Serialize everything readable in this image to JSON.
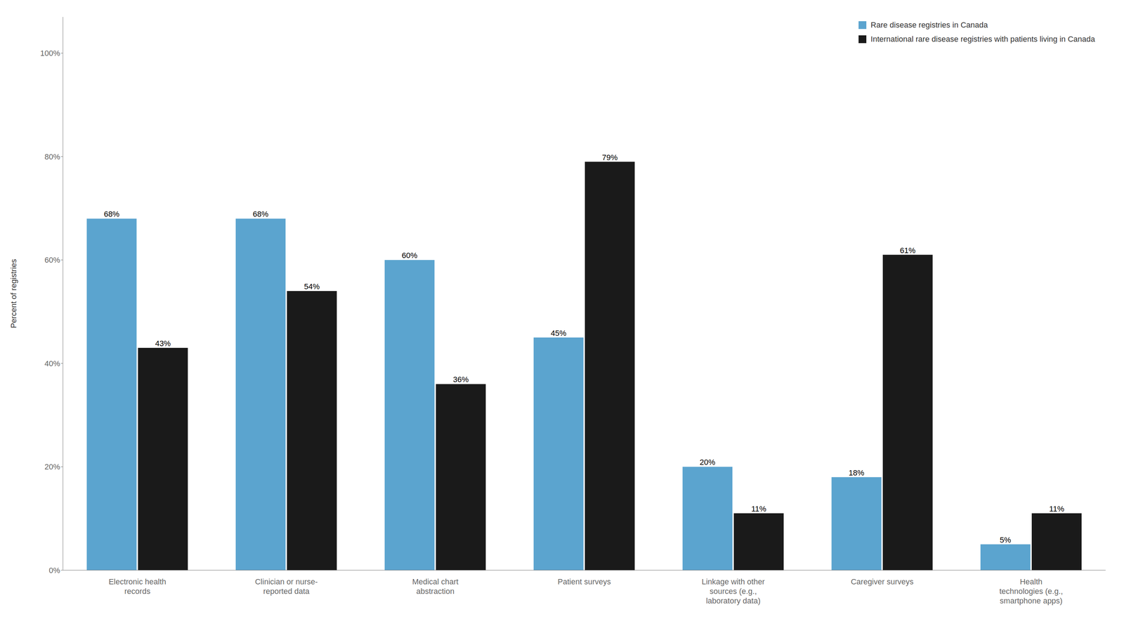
{
  "chart_data": {
    "type": "bar",
    "categories": [
      "Electronic health\nrecords",
      "Clinician or nurse-\nreported data",
      "Medical chart\nabstraction",
      "Patient surveys",
      "Linkage with other\nsources (e.g.,\nlaboratory data)",
      "Caregiver surveys",
      "Health\ntechnologies (e.g.,\nsmartphone apps)"
    ],
    "series": [
      {
        "name": "Rare disease registries in Canada",
        "color": "#5BA4CF",
        "values": [
          68,
          68,
          60,
          45,
          20,
          18,
          5
        ],
        "value_labels": [
          "68%",
          "68%",
          "60%",
          "45%",
          "20%",
          "18%",
          "5%"
        ]
      },
      {
        "name": "International rare disease registries with patients living in Canada",
        "color": "#1A1A1A",
        "values": [
          43,
          54,
          36,
          79,
          11,
          61,
          11
        ],
        "value_labels": [
          "43%",
          "54%",
          "36%",
          "79%",
          "11%",
          "61%",
          "11%"
        ]
      }
    ],
    "ylabel": "Percent of registries",
    "ylim": [
      0,
      107
    ],
    "yticks": [
      {
        "value": 0,
        "label": "0%"
      },
      {
        "value": 20,
        "label": "20%"
      },
      {
        "value": 40,
        "label": "40%"
      },
      {
        "value": 60,
        "label": "60%"
      },
      {
        "value": 80,
        "label": "80%"
      },
      {
        "value": 100,
        "label": "100%"
      }
    ],
    "grid": false,
    "legend": "upper right",
    "data_labels": true
  }
}
